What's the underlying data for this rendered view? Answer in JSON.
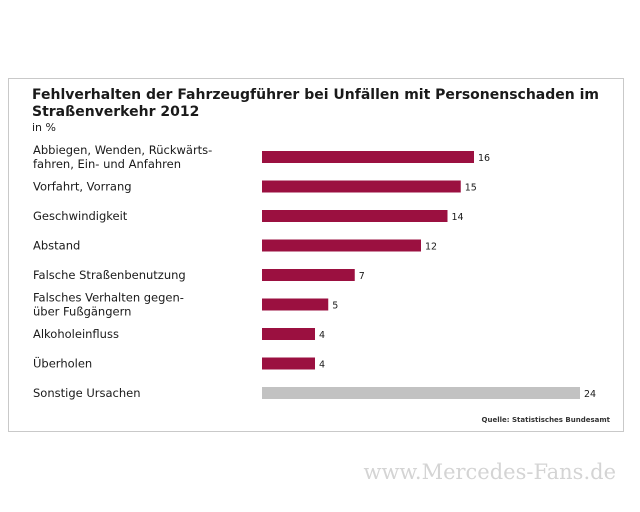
{
  "chart_data": {
    "type": "bar",
    "orientation": "horizontal",
    "title": "Fehlverhalten der Fahrzeugführer bei Unfällen mit Personenschaden im Straßenverkehr 2012",
    "subtitle": "in %",
    "categories": [
      [
        "Abbiegen, Wenden, Rückwärts-",
        "fahren, Ein- und Anfahren"
      ],
      [
        "Vorfahrt, Vorrang"
      ],
      [
        "Geschwindigkeit"
      ],
      [
        "Abstand"
      ],
      [
        "Falsche Straßenbenutzung"
      ],
      [
        "Falsches Verhalten gegen-",
        "über Fußgängern"
      ],
      [
        "Alkoholeinfluss"
      ],
      [
        "Überholen"
      ],
      [
        "Sonstige Ursachen"
      ]
    ],
    "values": [
      16,
      15,
      14,
      12,
      7,
      5,
      4,
      4,
      24
    ],
    "colors": [
      "#9b1040",
      "#9b1040",
      "#9b1040",
      "#9b1040",
      "#9b1040",
      "#9b1040",
      "#9b1040",
      "#9b1040",
      "#c2c2c2"
    ],
    "xlim": [
      0,
      24
    ],
    "source": "Quelle: Statistisches Bundesamt"
  },
  "watermark": "www.Mercedes-Fans.de"
}
